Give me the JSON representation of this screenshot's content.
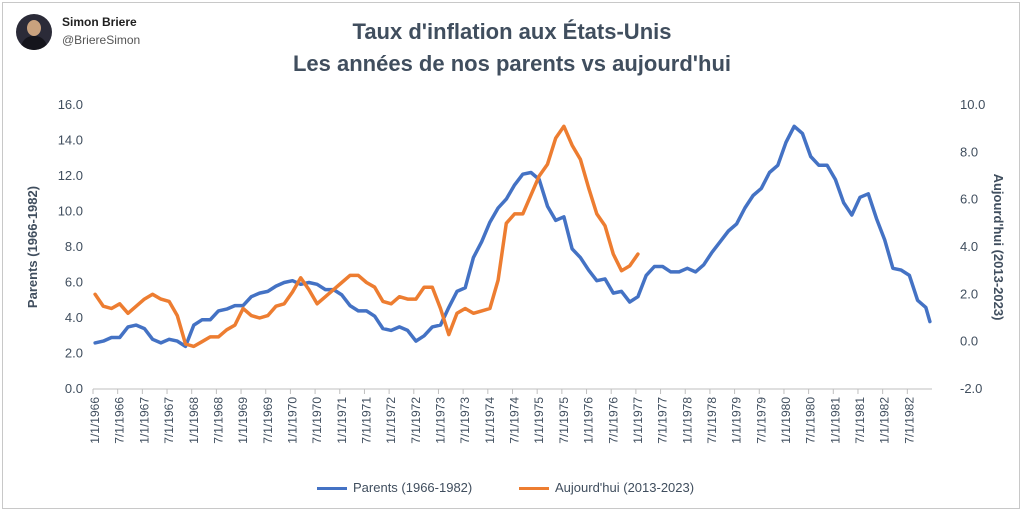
{
  "author": {
    "name": "Simon Briere",
    "handle": "@BriereSimon"
  },
  "colors": {
    "parents": "#4472C4",
    "today": "#ED7D31",
    "text": "#404E5E",
    "axis": "#BFBFBF"
  },
  "chart_data": {
    "type": "line",
    "title": "Taux d'inflation aux États-Unis",
    "subtitle": "Les années de nos parents vs aujourd'hui",
    "ylabel_left": "Parents (1966-1982)",
    "ylabel_right": "Aujourd'hui (2013-2023)",
    "ylim_left": [
      0,
      16
    ],
    "ylim_right": [
      -2,
      10
    ],
    "yticks_left": [
      "0.0",
      "2.0",
      "4.0",
      "6.0",
      "8.0",
      "10.0",
      "12.0",
      "14.0",
      "16.0"
    ],
    "yticks_right": [
      "-2.0",
      "0.0",
      "2.0",
      "4.0",
      "6.0",
      "8.0",
      "10.0"
    ],
    "x_start": "1966-01",
    "x_end": "1982-12",
    "x_ticks": [
      "1/1/1966",
      "7/1/1966",
      "1/1/1967",
      "7/1/1967",
      "1/1/1968",
      "7/1/1968",
      "1/1/1969",
      "7/1/1969",
      "1/1/1970",
      "7/1/1970",
      "1/1/1971",
      "7/1/1971",
      "1/1/1972",
      "7/1/1972",
      "1/1/1973",
      "7/1/1973",
      "1/1/1974",
      "7/1/1974",
      "1/1/1975",
      "7/1/1975",
      "1/1/1976",
      "7/1/1976",
      "1/1/1977",
      "7/1/1977",
      "1/1/1978",
      "7/1/1978",
      "1/1/1979",
      "7/1/1979",
      "1/1/1980",
      "7/1/1980",
      "1/1/1981",
      "7/1/1981",
      "1/1/1982",
      "7/1/1982"
    ],
    "legend_position": "bottom",
    "grid": false,
    "series": [
      {
        "name": "Parents (1966-1982)",
        "axis": "left",
        "points": [
          [
            "1966-01",
            2.6
          ],
          [
            "1966-03",
            2.7
          ],
          [
            "1966-05",
            2.9
          ],
          [
            "1966-07",
            2.9
          ],
          [
            "1966-09",
            3.5
          ],
          [
            "1966-11",
            3.6
          ],
          [
            "1967-01",
            3.4
          ],
          [
            "1967-03",
            2.8
          ],
          [
            "1967-05",
            2.6
          ],
          [
            "1967-07",
            2.8
          ],
          [
            "1967-09",
            2.7
          ],
          [
            "1967-11",
            2.4
          ],
          [
            "1968-01",
            3.6
          ],
          [
            "1968-03",
            3.9
          ],
          [
            "1968-05",
            3.9
          ],
          [
            "1968-07",
            4.4
          ],
          [
            "1968-09",
            4.5
          ],
          [
            "1968-11",
            4.7
          ],
          [
            "1969-01",
            4.7
          ],
          [
            "1969-03",
            5.2
          ],
          [
            "1969-05",
            5.4
          ],
          [
            "1969-07",
            5.5
          ],
          [
            "1969-09",
            5.8
          ],
          [
            "1969-11",
            6.0
          ],
          [
            "1970-01",
            6.1
          ],
          [
            "1970-03",
            5.9
          ],
          [
            "1970-05",
            6.0
          ],
          [
            "1970-07",
            5.9
          ],
          [
            "1970-09",
            5.6
          ],
          [
            "1970-11",
            5.6
          ],
          [
            "1971-01",
            5.3
          ],
          [
            "1971-03",
            4.7
          ],
          [
            "1971-05",
            4.4
          ],
          [
            "1971-07",
            4.4
          ],
          [
            "1971-09",
            4.1
          ],
          [
            "1971-11",
            3.4
          ],
          [
            "1972-01",
            3.3
          ],
          [
            "1972-03",
            3.5
          ],
          [
            "1972-05",
            3.3
          ],
          [
            "1972-07",
            2.7
          ],
          [
            "1972-09",
            3.0
          ],
          [
            "1972-11",
            3.5
          ],
          [
            "1973-01",
            3.6
          ],
          [
            "1973-03",
            4.6
          ],
          [
            "1973-05",
            5.5
          ],
          [
            "1973-07",
            5.7
          ],
          [
            "1973-09",
            7.4
          ],
          [
            "1973-11",
            8.3
          ],
          [
            "1974-01",
            9.4
          ],
          [
            "1974-03",
            10.2
          ],
          [
            "1974-05",
            10.7
          ],
          [
            "1974-07",
            11.5
          ],
          [
            "1974-09",
            12.1
          ],
          [
            "1974-11",
            12.2
          ],
          [
            "1975-01",
            11.8
          ],
          [
            "1975-03",
            10.3
          ],
          [
            "1975-05",
            9.5
          ],
          [
            "1975-07",
            9.7
          ],
          [
            "1975-09",
            7.9
          ],
          [
            "1975-11",
            7.4
          ],
          [
            "1976-01",
            6.7
          ],
          [
            "1976-03",
            6.1
          ],
          [
            "1976-05",
            6.2
          ],
          [
            "1976-07",
            5.4
          ],
          [
            "1976-09",
            5.5
          ],
          [
            "1976-11",
            4.9
          ],
          [
            "1977-01",
            5.2
          ],
          [
            "1977-03",
            6.4
          ],
          [
            "1977-05",
            6.9
          ],
          [
            "1977-07",
            6.9
          ],
          [
            "1977-09",
            6.6
          ],
          [
            "1977-11",
            6.6
          ],
          [
            "1978-01",
            6.8
          ],
          [
            "1978-03",
            6.6
          ],
          [
            "1978-05",
            7.0
          ],
          [
            "1978-07",
            7.7
          ],
          [
            "1978-09",
            8.3
          ],
          [
            "1978-11",
            8.9
          ],
          [
            "1979-01",
            9.3
          ],
          [
            "1979-03",
            10.2
          ],
          [
            "1979-05",
            10.9
          ],
          [
            "1979-07",
            11.3
          ],
          [
            "1979-09",
            12.2
          ],
          [
            "1979-11",
            12.6
          ],
          [
            "1980-01",
            13.9
          ],
          [
            "1980-03",
            14.8
          ],
          [
            "1980-05",
            14.4
          ],
          [
            "1980-07",
            13.1
          ],
          [
            "1980-09",
            12.6
          ],
          [
            "1980-11",
            12.6
          ],
          [
            "1981-01",
            11.8
          ],
          [
            "1981-03",
            10.5
          ],
          [
            "1981-05",
            9.8
          ],
          [
            "1981-07",
            10.8
          ],
          [
            "1981-09",
            11.0
          ],
          [
            "1981-11",
            9.6
          ],
          [
            "1982-01",
            8.4
          ],
          [
            "1982-03",
            6.8
          ],
          [
            "1982-05",
            6.7
          ],
          [
            "1982-07",
            6.4
          ],
          [
            "1982-09",
            5.0
          ],
          [
            "1982-11",
            4.6
          ],
          [
            "1982-12",
            3.8
          ]
        ]
      },
      {
        "name": "Aujourd'hui (2013-2023)",
        "axis": "right",
        "points": [
          [
            "1966-01",
            2.0
          ],
          [
            "1966-03",
            1.5
          ],
          [
            "1966-05",
            1.4
          ],
          [
            "1966-07",
            1.6
          ],
          [
            "1966-09",
            1.2
          ],
          [
            "1966-11",
            1.5
          ],
          [
            "1967-01",
            1.8
          ],
          [
            "1967-03",
            2.0
          ],
          [
            "1967-05",
            1.8
          ],
          [
            "1967-07",
            1.7
          ],
          [
            "1967-09",
            1.1
          ],
          [
            "1967-11",
            -0.1
          ],
          [
            "1968-01",
            -0.2
          ],
          [
            "1968-03",
            0.0
          ],
          [
            "1968-05",
            0.2
          ],
          [
            "1968-07",
            0.2
          ],
          [
            "1968-09",
            0.5
          ],
          [
            "1968-11",
            0.7
          ],
          [
            "1969-01",
            1.4
          ],
          [
            "1969-03",
            1.1
          ],
          [
            "1969-05",
            1.0
          ],
          [
            "1969-07",
            1.1
          ],
          [
            "1969-09",
            1.5
          ],
          [
            "1969-11",
            1.6
          ],
          [
            "1970-01",
            2.1
          ],
          [
            "1970-03",
            2.7
          ],
          [
            "1970-05",
            2.2
          ],
          [
            "1970-07",
            1.6
          ],
          [
            "1970-09",
            1.9
          ],
          [
            "1970-11",
            2.2
          ],
          [
            "1971-01",
            2.5
          ],
          [
            "1971-03",
            2.8
          ],
          [
            "1971-05",
            2.8
          ],
          [
            "1971-07",
            2.5
          ],
          [
            "1971-09",
            2.3
          ],
          [
            "1971-11",
            1.7
          ],
          [
            "1972-01",
            1.6
          ],
          [
            "1972-03",
            1.9
          ],
          [
            "1972-05",
            1.8
          ],
          [
            "1972-07",
            1.8
          ],
          [
            "1972-09",
            2.3
          ],
          [
            "1972-11",
            2.3
          ],
          [
            "1973-01",
            1.4
          ],
          [
            "1973-03",
            0.3
          ],
          [
            "1973-05",
            1.2
          ],
          [
            "1973-07",
            1.4
          ],
          [
            "1973-09",
            1.2
          ],
          [
            "1973-11",
            1.3
          ],
          [
            "1974-01",
            1.4
          ],
          [
            "1974-03",
            2.6
          ],
          [
            "1974-05",
            5.0
          ],
          [
            "1974-07",
            5.4
          ],
          [
            "1974-09",
            5.4
          ],
          [
            "1974-11",
            6.2
          ],
          [
            "1975-01",
            7.0
          ],
          [
            "1975-03",
            7.5
          ],
          [
            "1975-05",
            8.6
          ],
          [
            "1975-07",
            9.1
          ],
          [
            "1975-09",
            8.3
          ],
          [
            "1975-11",
            7.7
          ],
          [
            "1976-01",
            6.5
          ],
          [
            "1976-03",
            5.4
          ],
          [
            "1976-05",
            4.9
          ],
          [
            "1976-07",
            3.7
          ],
          [
            "1976-09",
            3.0
          ],
          [
            "1976-11",
            3.2
          ],
          [
            "1977-01",
            3.7
          ]
        ]
      }
    ]
  }
}
